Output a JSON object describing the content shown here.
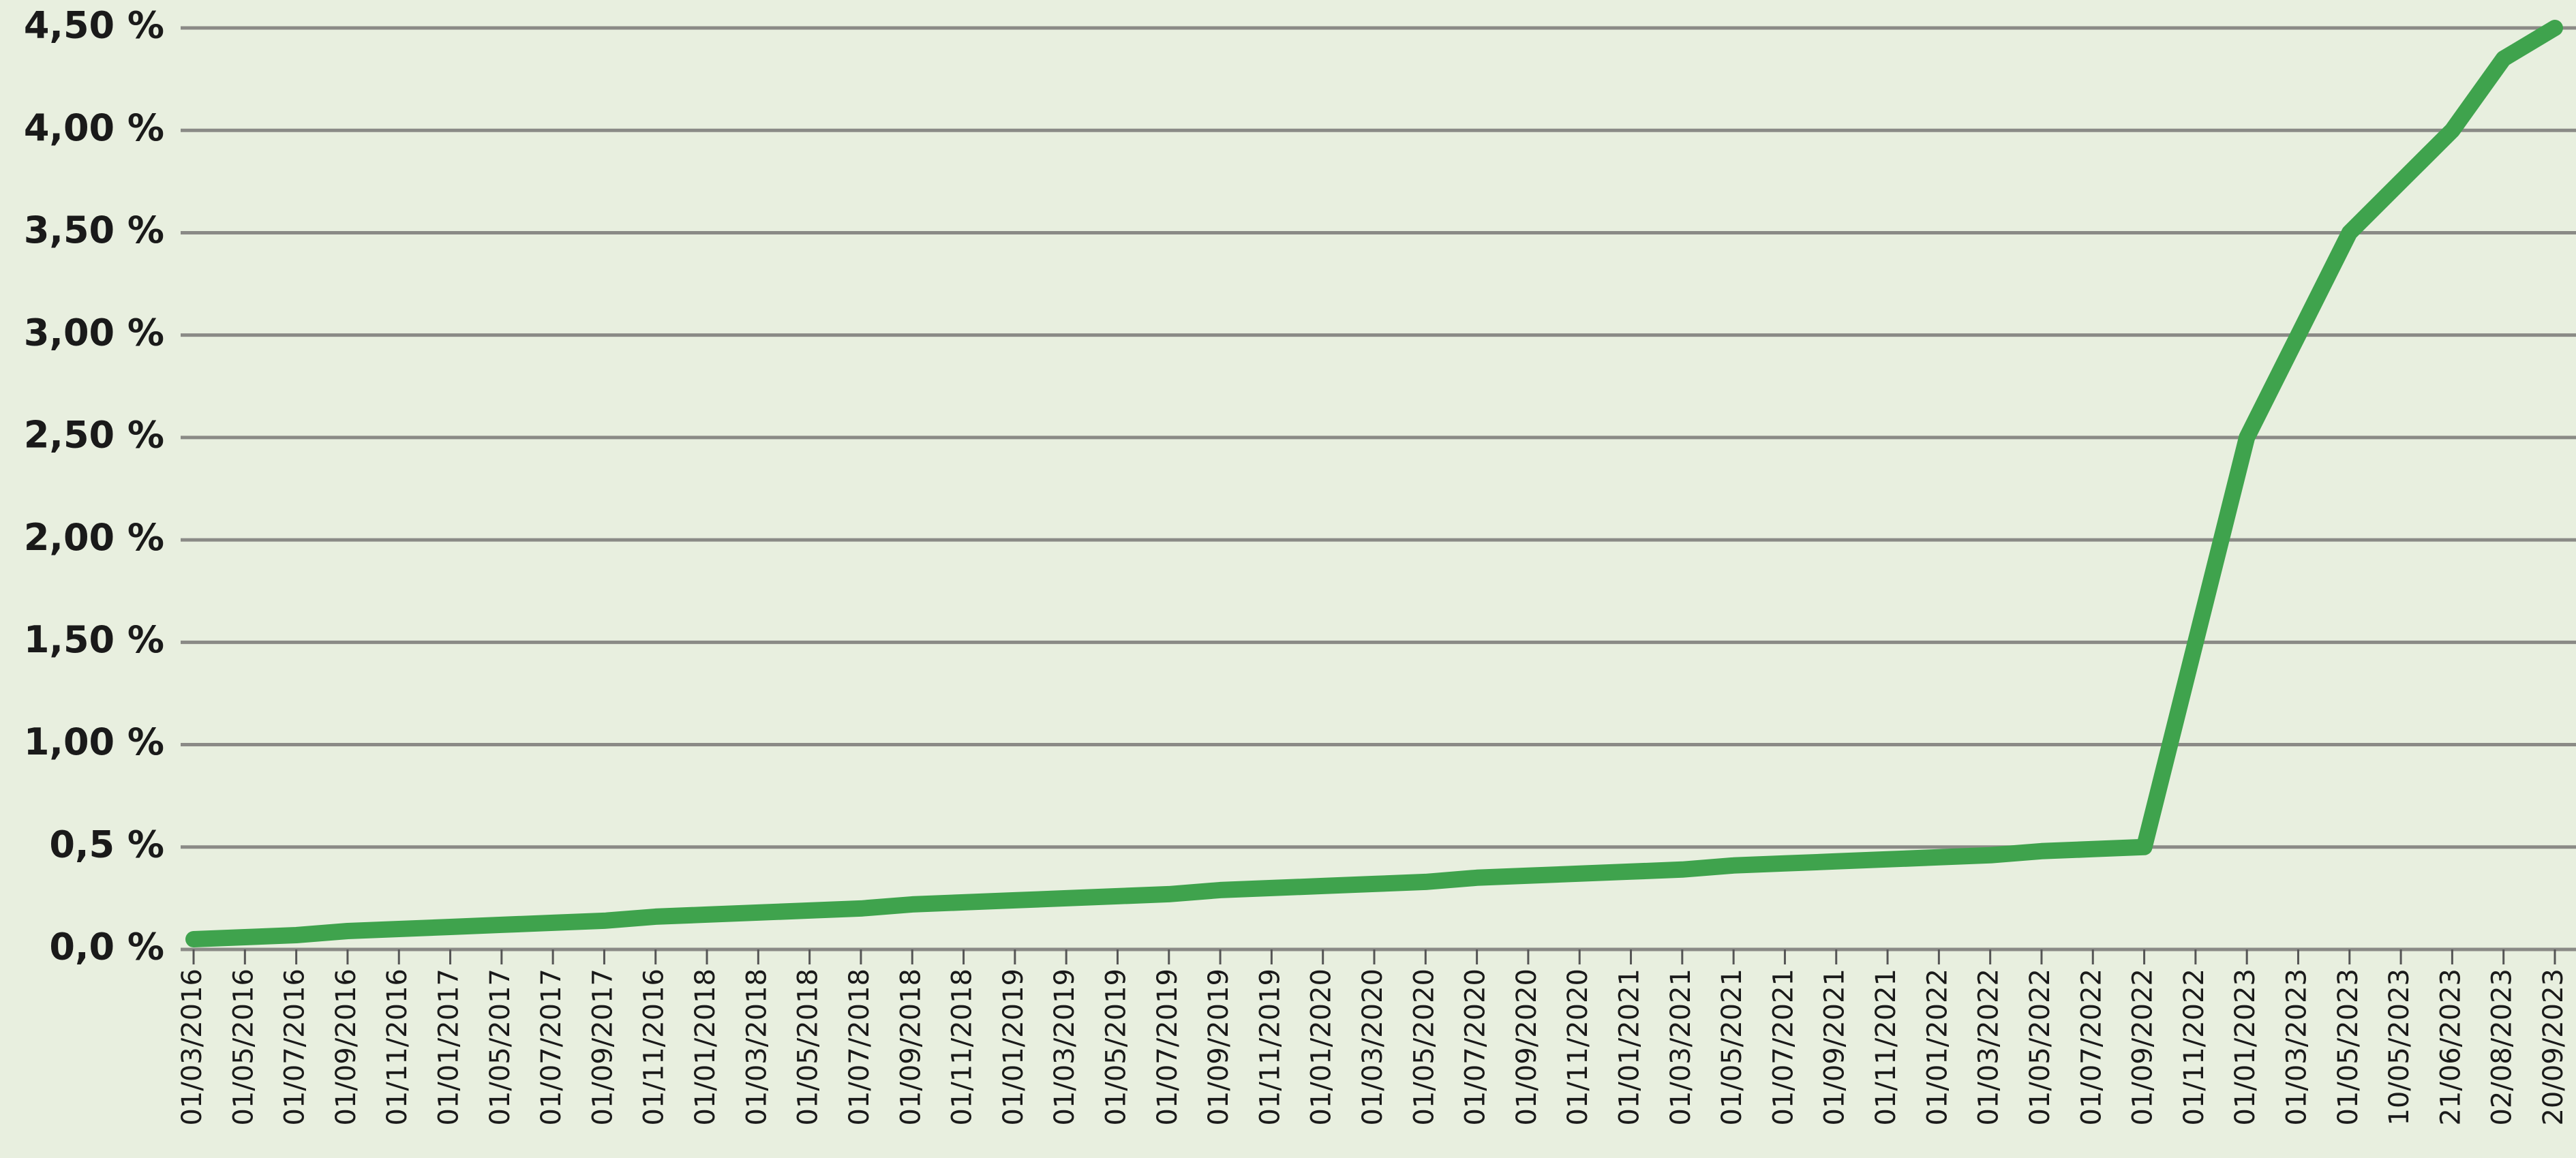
{
  "chart_data": {
    "type": "line",
    "categories": [
      "01/03/2016",
      "01/05/2016",
      "01/07/2016",
      "01/09/2016",
      "01/11/2016",
      "01/01/2017",
      "01/05/2017",
      "01/07/2017",
      "01/09/2017",
      "01/11/2016",
      "01/01/2018",
      "01/03/2018",
      "01/05/2018",
      "01/07/2018",
      "01/09/2018",
      "01/11/2018",
      "01/01/2019",
      "01/03/2019",
      "01/05/2019",
      "01/07/2019",
      "01/09/2019",
      "01/11/2019",
      "01/01/2020",
      "01/03/2020",
      "01/05/2020",
      "01/07/2020",
      "01/09/2020",
      "01/11/2020",
      "01/01/2021",
      "01/03/2021",
      "01/05/2021",
      "01/07/2021",
      "01/09/2021",
      "01/11/2021",
      "01/01/2022",
      "01/03/2022",
      "01/05/2022",
      "01/07/2022",
      "01/09/2022",
      "01/11/2022",
      "01/01/2023",
      "01/03/2023",
      "01/05/2023",
      "10/05/2023",
      "21/06/2023",
      "02/08/2023",
      "20/09/2023"
    ],
    "values": [
      0.05,
      0.06,
      0.07,
      0.09,
      0.1,
      0.11,
      0.12,
      0.13,
      0.14,
      0.16,
      0.17,
      0.18,
      0.19,
      0.2,
      0.22,
      0.23,
      0.24,
      0.25,
      0.26,
      0.27,
      0.29,
      0.3,
      0.31,
      0.32,
      0.33,
      0.35,
      0.36,
      0.37,
      0.38,
      0.39,
      0.41,
      0.42,
      0.43,
      0.44,
      0.45,
      0.46,
      0.48,
      0.49,
      0.5,
      1.5,
      2.5,
      3.0,
      3.5,
      3.75,
      4.0,
      4.35,
      4.5
    ],
    "color": "#3fa34d",
    "ylim": [
      0,
      4.5
    ],
    "yticks": [
      {
        "value": 0,
        "label": "0,0 %"
      },
      {
        "value": 0.5,
        "label": "0,5 %"
      },
      {
        "value": 1,
        "label": "1,00 %"
      },
      {
        "value": 1.5,
        "label": "1,50 %"
      },
      {
        "value": 2,
        "label": "2,00 %"
      },
      {
        "value": 2.5,
        "label": "2,50 %"
      },
      {
        "value": 3,
        "label": "3,00 %"
      },
      {
        "value": 3.5,
        "label": "3,50 %"
      },
      {
        "value": 4,
        "label": "4,00 %"
      },
      {
        "value": 4.5,
        "label": "4,50 %"
      }
    ],
    "grid": true
  }
}
